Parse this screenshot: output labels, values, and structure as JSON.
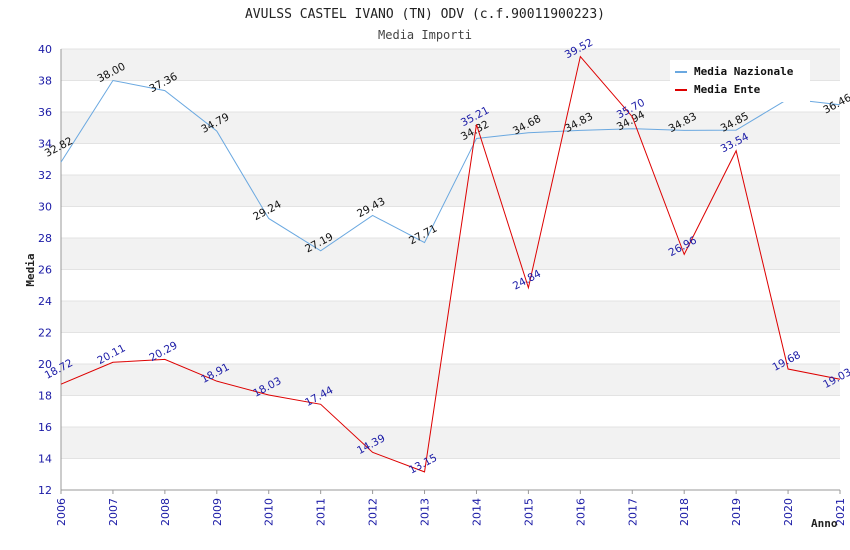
{
  "chart_data": {
    "type": "line",
    "title": "AVULSS CASTEL IVANO (TN) ODV (c.f.90011900223)",
    "subtitle": "Media Importi",
    "xlabel": "Anno",
    "ylabel": "Media",
    "x": [
      "2006",
      "2007",
      "2008",
      "2009",
      "2010",
      "2011",
      "2012",
      "2013",
      "2014",
      "2015",
      "2016",
      "2017",
      "2018",
      "2019",
      "2020",
      "2021"
    ],
    "ylim": [
      12,
      40
    ],
    "yticks": [
      "12",
      "14",
      "16",
      "18",
      "20",
      "22",
      "24",
      "26",
      "28",
      "30",
      "32",
      "34",
      "36",
      "38",
      "40"
    ],
    "grid": true,
    "legend_position": "top-right",
    "series": [
      {
        "name": "Media Nazionale",
        "color": "#6aa8e0",
        "values": [
          32.82,
          38.0,
          37.36,
          34.79,
          29.24,
          27.19,
          29.43,
          27.71,
          34.32,
          34.68,
          34.83,
          34.94,
          34.83,
          34.85,
          36.83,
          36.46
        ],
        "labels": [
          "32.82",
          "38.00",
          "37.36",
          "34.79",
          "29.24",
          "27.19",
          "29.43",
          "27.71",
          "34.32",
          "34.68",
          "34.83",
          "34.94",
          "34.83",
          "34.85",
          "",
          "36.46"
        ]
      },
      {
        "name": "Media Ente",
        "color": "#dd0000",
        "values": [
          18.72,
          20.11,
          20.29,
          18.91,
          18.03,
          17.44,
          14.39,
          13.15,
          35.21,
          24.84,
          39.52,
          35.7,
          26.96,
          33.54,
          19.68,
          19.03
        ],
        "labels": [
          "18.72",
          "20.11",
          "20.29",
          "18.91",
          "18.03",
          "17.44",
          "14.39",
          "13.15",
          "35.21",
          "24.84",
          "39.52",
          "35.70",
          "26.96",
          "33.54",
          "19.68",
          "19.03"
        ]
      }
    ]
  }
}
